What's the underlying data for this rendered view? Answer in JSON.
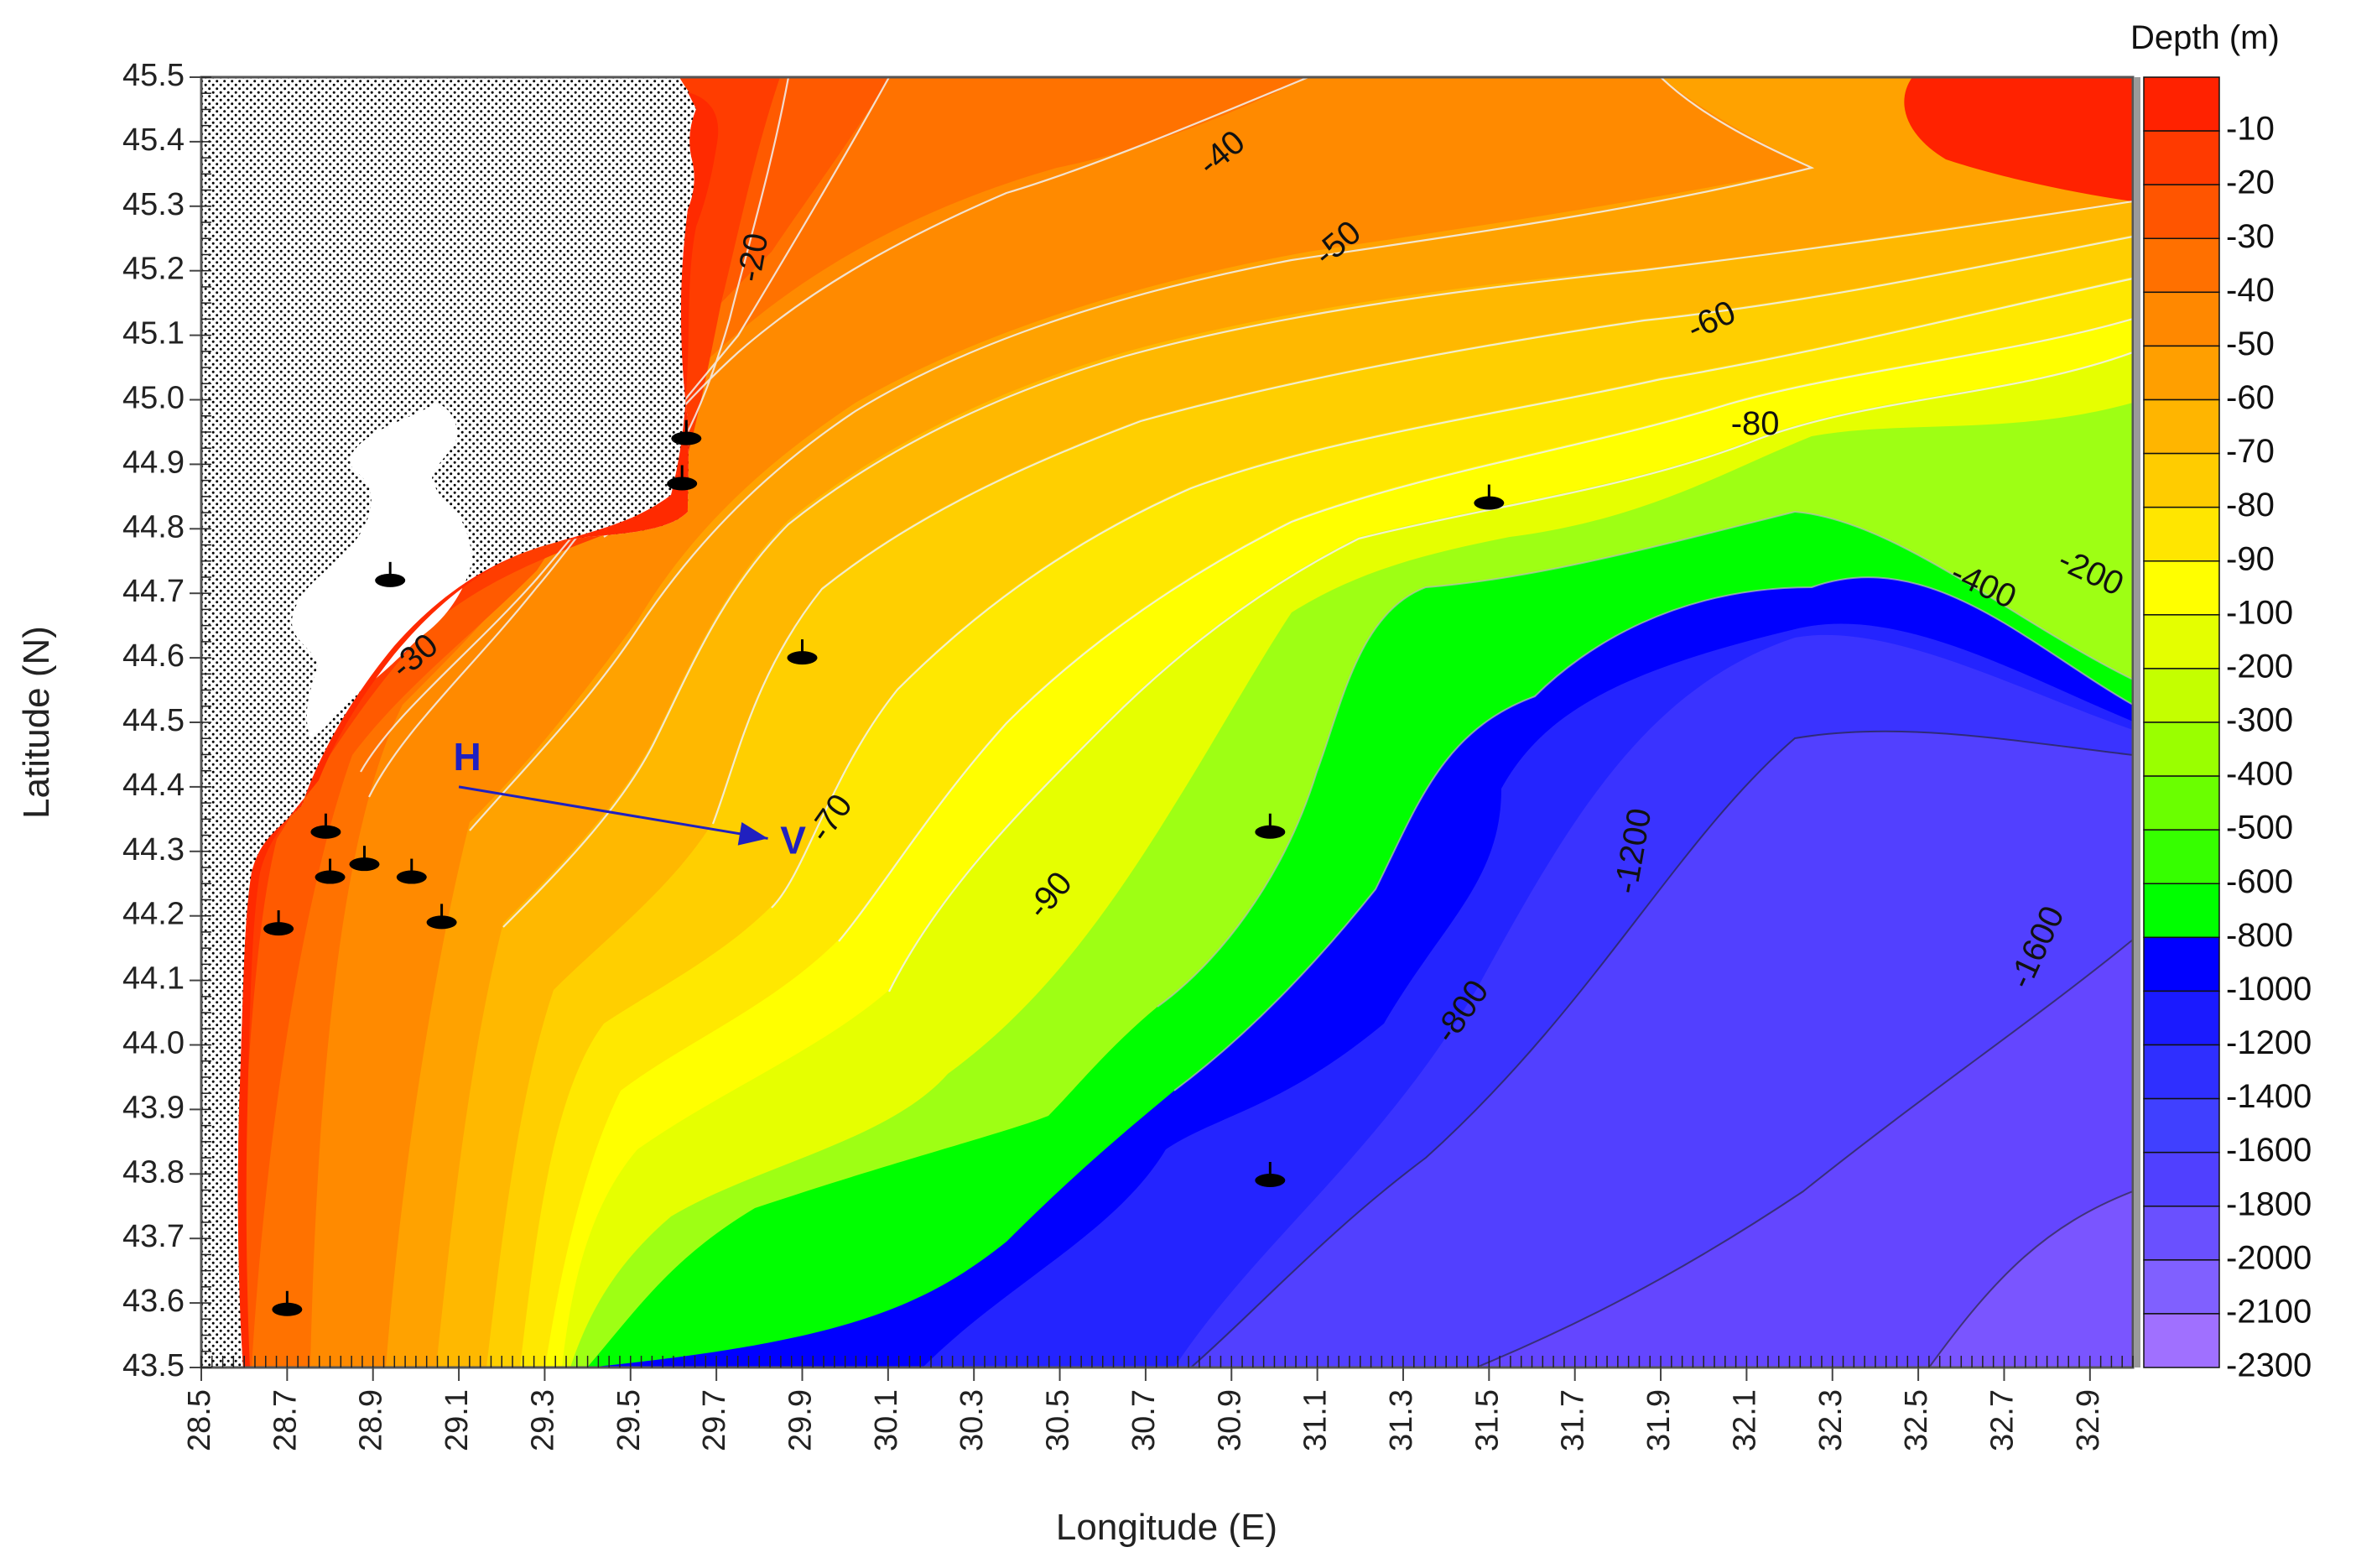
{
  "map": {
    "x_axis": {
      "label": "Longitude (E)",
      "range": [
        28.5,
        33.0
      ],
      "ticks": [
        "28.5",
        "28.7",
        "28.9",
        "29.1",
        "29.3",
        "29.5",
        "29.7",
        "29.9",
        "30.1",
        "30.3",
        "30.5",
        "30.7",
        "30.9",
        "31.1",
        "31.3",
        "31.5",
        "31.7",
        "31.9",
        "32.1",
        "32.3",
        "32.5",
        "32.7",
        "32.9"
      ]
    },
    "y_axis": {
      "label": "Latitude (N)",
      "range": [
        43.5,
        45.5
      ],
      "ticks": [
        "45.5",
        "45.4",
        "45.3",
        "45.2",
        "45.1",
        "45.0",
        "44.9",
        "44.8",
        "44.7",
        "44.6",
        "44.5",
        "44.4",
        "44.3",
        "44.2",
        "44.1",
        "44.0",
        "43.9",
        "43.8",
        "43.7",
        "43.6",
        "43.5"
      ]
    },
    "legend": {
      "title": "Depth (m)",
      "items": [
        {
          "label": "-10",
          "color": "#ff2200"
        },
        {
          "label": "-20",
          "color": "#ff3a00"
        },
        {
          "label": "-30",
          "color": "#ff5500"
        },
        {
          "label": "-40",
          "color": "#ff7000"
        },
        {
          "label": "-50",
          "color": "#ff8800"
        },
        {
          "label": "-60",
          "color": "#ff9f00"
        },
        {
          "label": "-70",
          "color": "#ffb500"
        },
        {
          "label": "-80",
          "color": "#ffcc00"
        },
        {
          "label": "-90",
          "color": "#ffe600"
        },
        {
          "label": "-100",
          "color": "#ffff00"
        },
        {
          "label": "-200",
          "color": "#e4ff00"
        },
        {
          "label": "-300",
          "color": "#c4ff00"
        },
        {
          "label": "-400",
          "color": "#9aff00"
        },
        {
          "label": "-500",
          "color": "#6aff00"
        },
        {
          "label": "-600",
          "color": "#36ff00"
        },
        {
          "label": "-800",
          "color": "#00ff00"
        },
        {
          "label": "-1000",
          "color": "#0000ff"
        },
        {
          "label": "-1200",
          "color": "#1a1aff"
        },
        {
          "label": "-1400",
          "color": "#2f2fff"
        },
        {
          "label": "-1600",
          "color": "#4040ff"
        },
        {
          "label": "-1800",
          "color": "#5040ff"
        },
        {
          "label": "-2000",
          "color": "#6a50ff"
        },
        {
          "label": "-2100",
          "color": "#8060ff"
        },
        {
          "label": "-2300",
          "color": "#a070ff"
        }
      ]
    },
    "contour_labels": [
      {
        "text": "-20",
        "lon": 29.79,
        "lat": 45.22,
        "rot": -80
      },
      {
        "text": "-30",
        "lon": 29.0,
        "lat": 44.6,
        "rot": -40
      },
      {
        "text": "-40",
        "lon": 30.88,
        "lat": 45.38,
        "rot": -40
      },
      {
        "text": "-50",
        "lon": 31.15,
        "lat": 45.24,
        "rot": -40
      },
      {
        "text": "-60",
        "lon": 32.02,
        "lat": 45.12,
        "rot": -25
      },
      {
        "text": "-70",
        "lon": 29.97,
        "lat": 44.35,
        "rot": -55
      },
      {
        "text": "-80",
        "lon": 32.12,
        "lat": 44.96,
        "rot": 0
      },
      {
        "text": "-90",
        "lon": 30.48,
        "lat": 44.23,
        "rot": -50
      },
      {
        "text": "-200",
        "lon": 32.9,
        "lat": 44.73,
        "rot": 25
      },
      {
        "text": "-400",
        "lon": 32.65,
        "lat": 44.71,
        "rot": 25
      },
      {
        "text": "-800",
        "lon": 31.44,
        "lat": 44.05,
        "rot": -55
      },
      {
        "text": "-1200",
        "lon": 31.84,
        "lat": 44.3,
        "rot": -80
      },
      {
        "text": "-1600",
        "lon": 32.78,
        "lat": 44.15,
        "rot": -65
      }
    ],
    "transect": {
      "start_label": "H",
      "end_label": "V",
      "start": [
        29.1,
        44.4
      ],
      "end": [
        29.82,
        44.32
      ]
    },
    "stations": [
      [
        29.63,
        44.94
      ],
      [
        29.62,
        44.87
      ],
      [
        28.94,
        44.72
      ],
      [
        29.9,
        44.6
      ],
      [
        28.79,
        44.33
      ],
      [
        28.8,
        44.26
      ],
      [
        28.88,
        44.28
      ],
      [
        28.99,
        44.26
      ],
      [
        29.06,
        44.19
      ],
      [
        28.68,
        44.18
      ],
      [
        30.99,
        44.33
      ],
      [
        31.5,
        44.84
      ],
      [
        30.99,
        43.79
      ],
      [
        28.7,
        43.59
      ]
    ]
  }
}
